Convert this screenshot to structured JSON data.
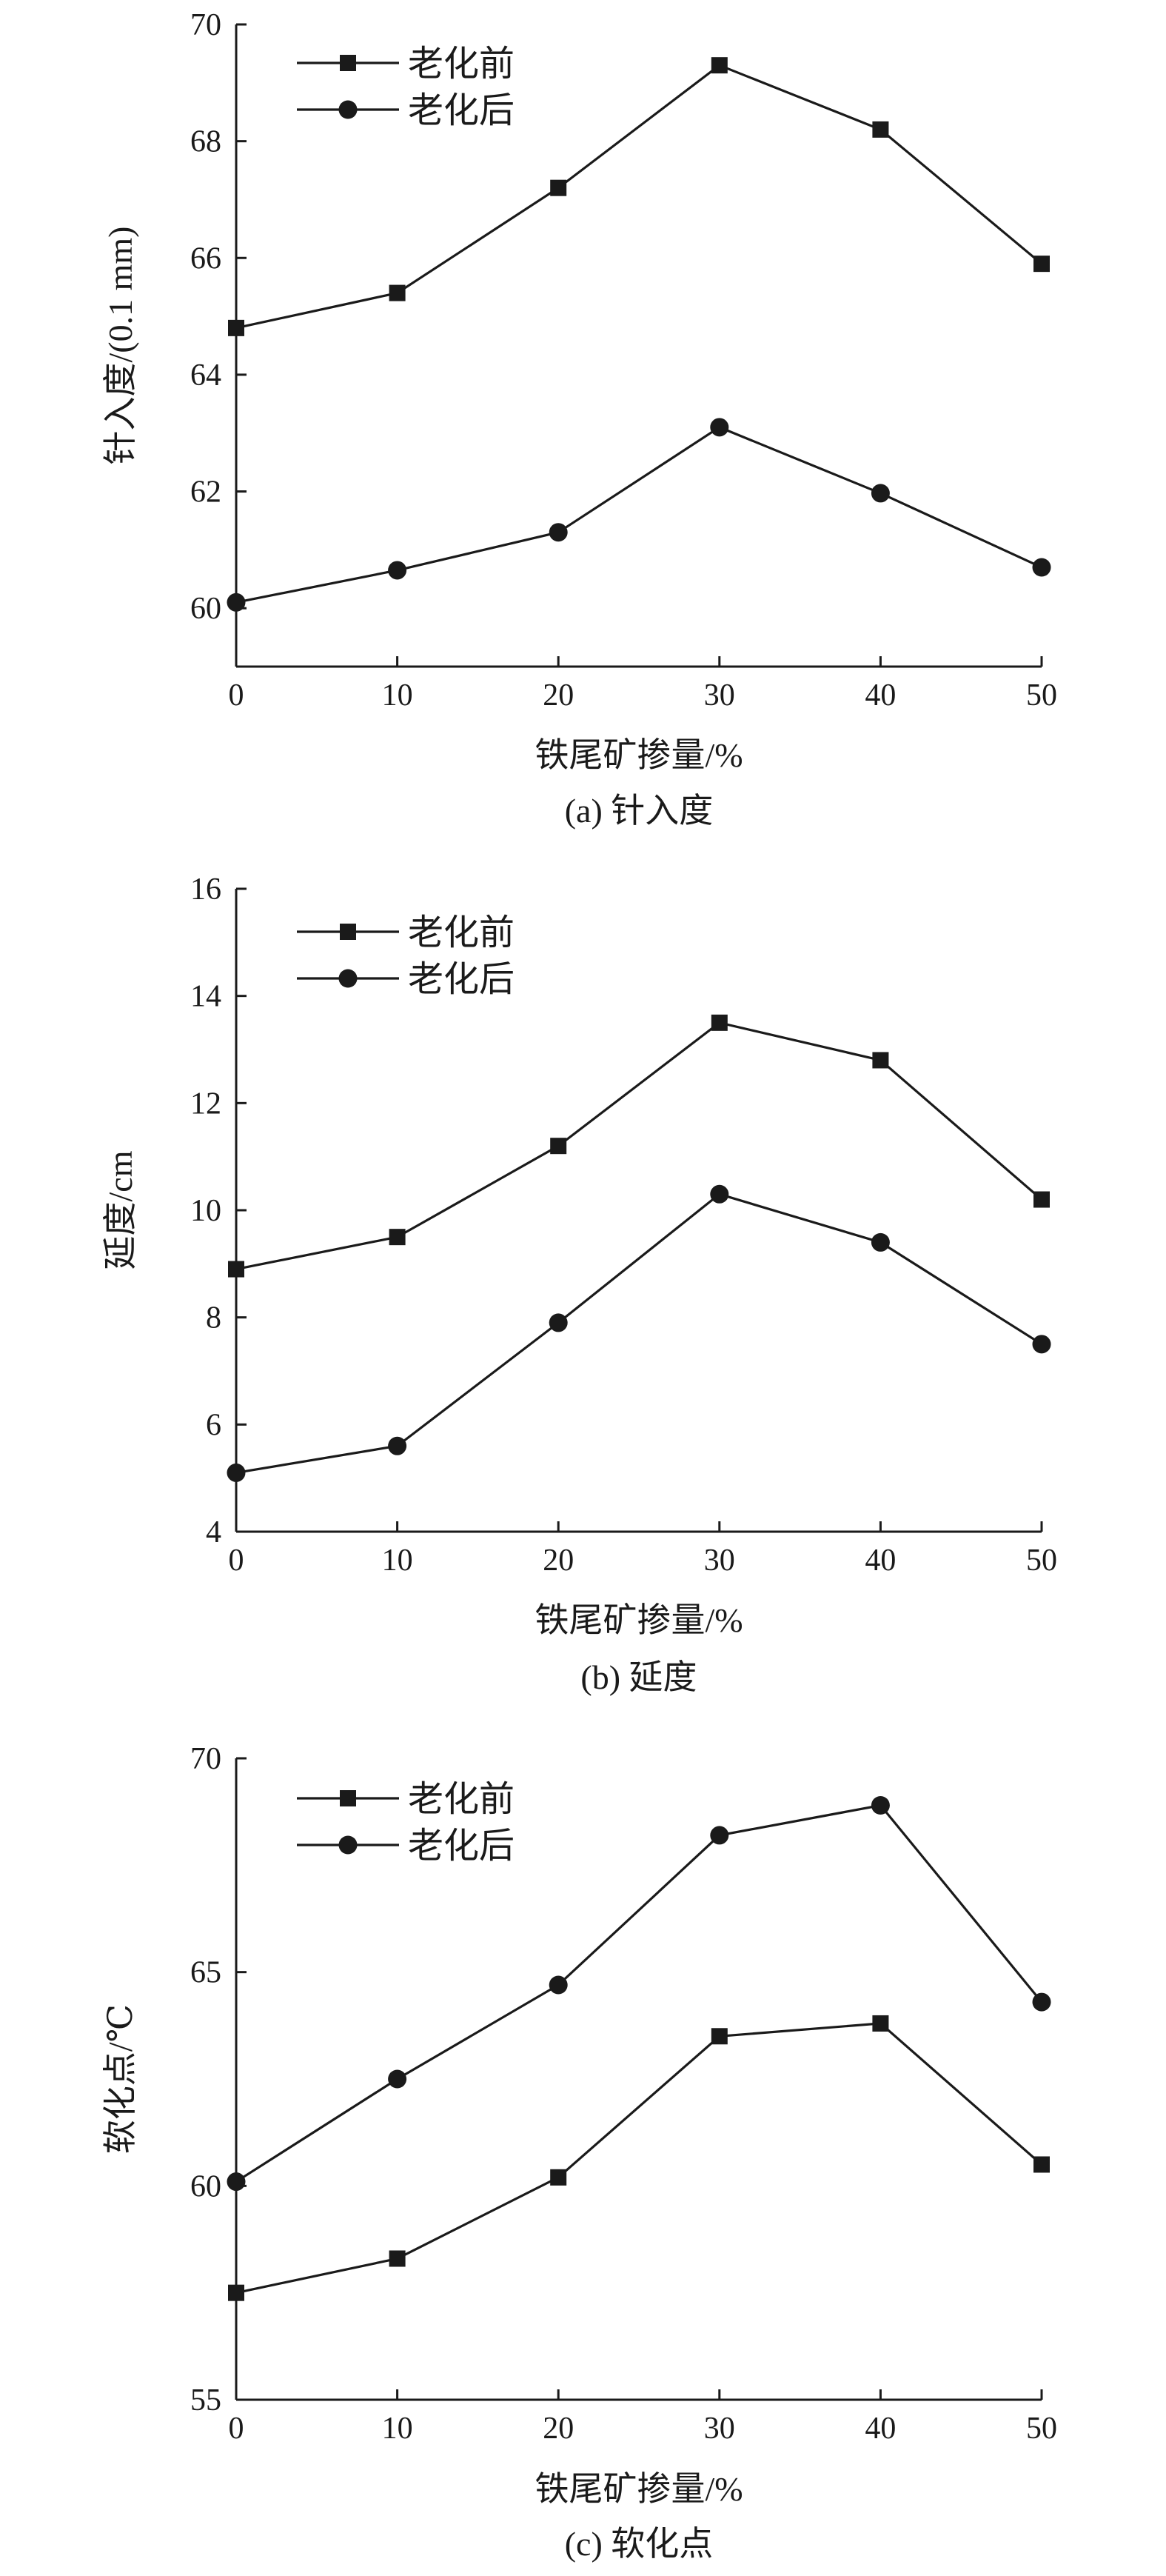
{
  "chart_data": [
    {
      "type": "line",
      "caption": "(a) 针入度",
      "xlabel": "铁尾矿掺量/%",
      "ylabel": "针入度/(0.1 mm)",
      "xlim": [
        0,
        50
      ],
      "ylim": [
        59,
        70
      ],
      "xticks": [
        0,
        10,
        20,
        30,
        40,
        50
      ],
      "yticks": [
        60,
        62,
        64,
        66,
        68,
        70
      ],
      "grid": false,
      "legend_position": "top-left",
      "x": [
        0,
        10,
        20,
        30,
        40,
        50
      ],
      "series": [
        {
          "name": "老化前",
          "marker": "square",
          "values": [
            64.8,
            65.4,
            67.2,
            69.3,
            68.2,
            65.9
          ]
        },
        {
          "name": "老化后",
          "marker": "circle",
          "values": [
            60.1,
            60.65,
            61.3,
            63.1,
            61.97,
            60.7
          ]
        }
      ]
    },
    {
      "type": "line",
      "caption": "(b) 延度",
      "xlabel": "铁尾矿掺量/%",
      "ylabel": "延度/cm",
      "xlim": [
        0,
        50
      ],
      "ylim": [
        4,
        16
      ],
      "xticks": [
        0,
        10,
        20,
        30,
        40,
        50
      ],
      "yticks": [
        4,
        6,
        8,
        10,
        12,
        14,
        16
      ],
      "grid": false,
      "legend_position": "top-left",
      "x": [
        0,
        10,
        20,
        30,
        40,
        50
      ],
      "series": [
        {
          "name": "老化前",
          "marker": "square",
          "values": [
            8.9,
            9.5,
            11.2,
            13.5,
            12.8,
            10.2
          ]
        },
        {
          "name": "老化后",
          "marker": "circle",
          "values": [
            5.1,
            5.6,
            7.9,
            10.3,
            9.4,
            7.5
          ]
        }
      ]
    },
    {
      "type": "line",
      "caption": "(c) 软化点",
      "xlabel": "铁尾矿掺量/%",
      "ylabel": "软化点/℃",
      "xlim": [
        0,
        50
      ],
      "ylim": [
        55,
        70
      ],
      "xticks": [
        0,
        10,
        20,
        30,
        40,
        50
      ],
      "yticks": [
        55,
        60,
        65,
        70
      ],
      "grid": false,
      "legend_position": "top-left",
      "x": [
        0,
        10,
        20,
        30,
        40,
        50
      ],
      "series": [
        {
          "name": "老化前",
          "marker": "square",
          "values": [
            57.5,
            58.3,
            60.2,
            63.5,
            63.8,
            60.5
          ]
        },
        {
          "name": "老化后",
          "marker": "circle",
          "values": [
            60.1,
            62.5,
            64.7,
            68.2,
            68.9,
            64.3
          ]
        }
      ]
    }
  ]
}
